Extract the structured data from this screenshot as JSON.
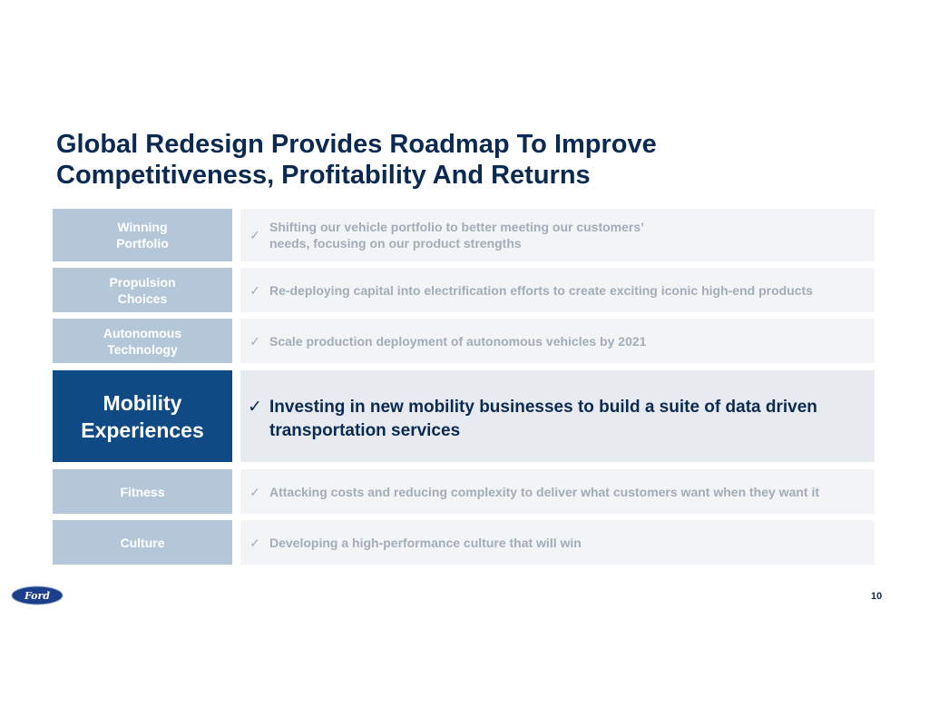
{
  "title": "Global Redesign Provides Roadmap To Improve Competitiveness, Profitability And Returns",
  "rows": [
    {
      "label": "Winning Portfolio",
      "text": "Shifting our vehicle portfolio to better meeting our customers’ needs, focusing on our product strengths"
    },
    {
      "label": "Propulsion Choices",
      "text": "Re-deploying capital into electrification efforts to create exciting iconic high-end products"
    },
    {
      "label": "Autonomous Technology",
      "text": "Scale production deployment of autonomous vehicles by 2021"
    },
    {
      "label": "Mobility Experiences",
      "text": "Investing in new mobility businesses to build a suite of data driven transportation services"
    },
    {
      "label": "Fitness",
      "text": "Attacking costs and reducing complexity to deliver what customers want when they want it"
    },
    {
      "label": "Culture",
      "text": "Developing a high-performance culture that will win"
    }
  ],
  "check": "✓",
  "logo": "Ford",
  "page_number": "10",
  "colors": {
    "highlight": "#0f4a85",
    "muted_label": "#b4c7d9",
    "title": "#0b2a52"
  }
}
